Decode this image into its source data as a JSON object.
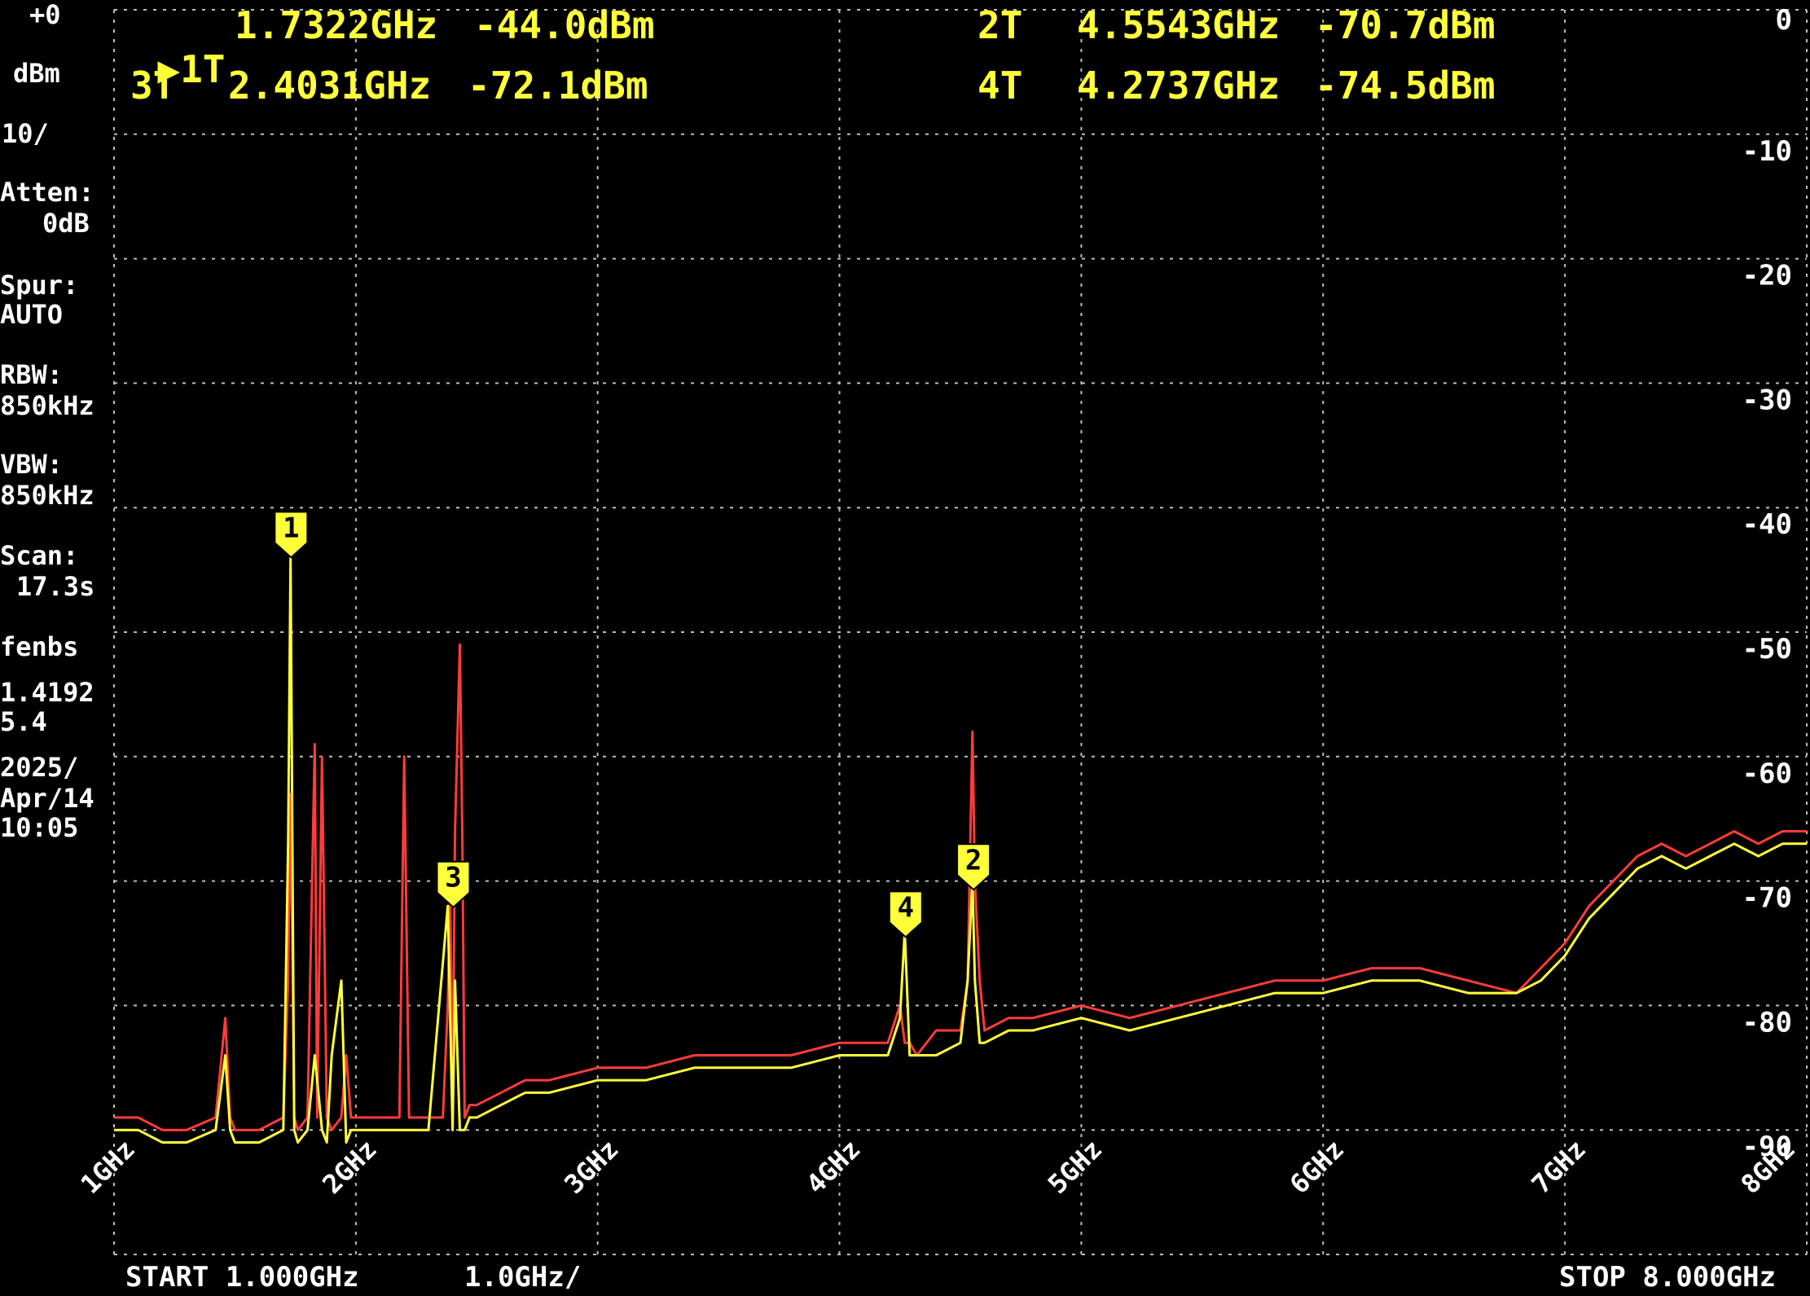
{
  "header": {
    "ref_level": "+0",
    "ref_unit": "dBm",
    "scale": "10/",
    "markers": [
      {
        "label": "1T",
        "freq": "1.7322GHz",
        "level": "-44.0dBm",
        "active": true
      },
      {
        "label": "2T",
        "freq": "4.5543GHz",
        "level": "-70.7dBm",
        "active": false
      },
      {
        "label": "3T",
        "freq": "2.4031GHz",
        "level": "-72.1dBm",
        "active": false
      },
      {
        "label": "4T",
        "freq": "4.2737GHz",
        "level": "-74.5dBm",
        "active": false
      }
    ]
  },
  "sidebar": {
    "atten_label": "Atten:",
    "atten_value": "0dB",
    "spur_label": "Spur:",
    "spur_value": "AUTO",
    "rbw_label": "RBW:",
    "rbw_value": "850kHz",
    "vbw_label": "VBW:",
    "vbw_value": "850kHz",
    "scan_label": "Scan:",
    "scan_value": "17.3s",
    "mode": "fenbs",
    "val1": "1.4192",
    "val2": "5.4",
    "date_year": "2025/",
    "date_day": "Apr/14",
    "time": "10:05"
  },
  "footer": {
    "start": "START 1.000GHz",
    "span_per_div": "1.0GHz/",
    "stop": "STOP 8.000GHz"
  },
  "colors": {
    "trace_max": "#ff3b3b",
    "trace_live": "#ffff3a",
    "grid": "#bdbdbd",
    "marker_fill": "#ffff3a"
  },
  "chart_data": {
    "type": "line",
    "xlim": [
      1,
      8
    ],
    "ylim": [
      -100,
      0
    ],
    "grid": true,
    "y_ticks": [
      0,
      -10,
      -20,
      -30,
      -40,
      -50,
      -60,
      -70,
      -80,
      -90
    ],
    "y_tick_labels": [
      "0",
      "-10",
      "-20",
      "-30",
      "-40",
      "-50",
      "-60",
      "-70",
      "-80",
      "-90"
    ],
    "x_ticks": [
      1,
      2,
      3,
      4,
      5,
      6,
      7,
      8
    ],
    "x_tick_labels": [
      "1GHz",
      "2GHz",
      "3GHz",
      "4GHz",
      "5GHz",
      "6GHz",
      "7GHz",
      "8GHz"
    ],
    "markers": [
      {
        "id": "1",
        "x": 1.7322,
        "y": -44.0
      },
      {
        "id": "2",
        "x": 4.5543,
        "y": -70.7
      },
      {
        "id": "3",
        "x": 2.4031,
        "y": -72.1
      },
      {
        "id": "4",
        "x": 4.2737,
        "y": -74.5
      }
    ],
    "series": [
      {
        "x": [
          1.0,
          1.1,
          1.2,
          1.3,
          1.42,
          1.46,
          1.48,
          1.5,
          1.6,
          1.7,
          1.72,
          1.73,
          1.745,
          1.76,
          1.8,
          1.83,
          1.84,
          1.86,
          1.88,
          1.9,
          1.94,
          1.96,
          1.98,
          2.0,
          2.1,
          2.18,
          2.2,
          2.22,
          2.3,
          2.36,
          2.38,
          2.39,
          2.4,
          2.41,
          2.43,
          2.44,
          2.45,
          2.47,
          2.5,
          2.6,
          2.7,
          2.8,
          3.0,
          3.2,
          3.4,
          3.6,
          3.8,
          4.0,
          4.2,
          4.25,
          4.27,
          4.29,
          4.32,
          4.4,
          4.5,
          4.53,
          4.55,
          4.56,
          4.58,
          4.6,
          4.7,
          4.8,
          5.0,
          5.2,
          5.4,
          5.6,
          5.8,
          6.0,
          6.2,
          6.4,
          6.6,
          6.8,
          6.9,
          7.0,
          7.1,
          7.2,
          7.3,
          7.4,
          7.5,
          7.6,
          7.7,
          7.8,
          7.9,
          8.0
        ],
        "values": [
          -89,
          -89,
          -90,
          -90,
          -89,
          -81,
          -89,
          -90,
          -90,
          -89,
          -78,
          -63,
          -89,
          -90,
          -89,
          -59,
          -89,
          -60,
          -89,
          -90,
          -89,
          -84,
          -89,
          -89,
          -89,
          -89,
          -60,
          -89,
          -89,
          -89,
          -80,
          -71,
          -89,
          -66,
          -51,
          -66,
          -89,
          -88,
          -88,
          -87,
          -86,
          -86,
          -85,
          -85,
          -84,
          -84,
          -84,
          -83,
          -83,
          -80,
          -83,
          -83,
          -84,
          -82,
          -82,
          -78,
          -58,
          -70,
          -78,
          -82,
          -81,
          -81,
          -80,
          -81,
          -80,
          -79,
          -78,
          -78,
          -77,
          -77,
          -78,
          -79,
          -77,
          -75,
          -72,
          -70,
          -68,
          -67,
          -68,
          -67,
          -66,
          -67,
          -66,
          -66
        ]
      },
      {
        "x": [
          1.0,
          1.1,
          1.2,
          1.3,
          1.42,
          1.46,
          1.48,
          1.5,
          1.6,
          1.7,
          1.72,
          1.73,
          1.745,
          1.76,
          1.8,
          1.83,
          1.86,
          1.88,
          1.9,
          1.94,
          1.96,
          1.98,
          2.0,
          2.1,
          2.2,
          2.3,
          2.38,
          2.4,
          2.41,
          2.43,
          2.45,
          2.47,
          2.5,
          2.6,
          2.7,
          2.8,
          3.0,
          3.2,
          3.4,
          3.6,
          3.8,
          4.0,
          4.2,
          4.25,
          4.27,
          4.29,
          4.32,
          4.4,
          4.5,
          4.53,
          4.55,
          4.56,
          4.58,
          4.6,
          4.7,
          4.8,
          5.0,
          5.2,
          5.4,
          5.6,
          5.8,
          6.0,
          6.2,
          6.4,
          6.6,
          6.8,
          6.9,
          7.0,
          7.1,
          7.2,
          7.3,
          7.4,
          7.5,
          7.6,
          7.7,
          7.8,
          7.9,
          8.0
        ],
        "values": [
          -90,
          -90,
          -91,
          -91,
          -90,
          -84,
          -90,
          -91,
          -91,
          -90,
          -67,
          -44,
          -90,
          -91,
          -90,
          -84,
          -90,
          -91,
          -84,
          -78,
          -91,
          -90,
          -90,
          -90,
          -90,
          -90,
          -72,
          -90,
          -78,
          -90,
          -90,
          -89,
          -89,
          -88,
          -87,
          -87,
          -86,
          -86,
          -85,
          -85,
          -85,
          -84,
          -84,
          -81,
          -74,
          -84,
          -84,
          -84,
          -83,
          -78,
          -70,
          -78,
          -83,
          -83,
          -82,
          -82,
          -81,
          -82,
          -81,
          -80,
          -79,
          -79,
          -78,
          -78,
          -79,
          -79,
          -78,
          -76,
          -73,
          -71,
          -69,
          -68,
          -69,
          -68,
          -67,
          -68,
          -67,
          -67
        ]
      }
    ]
  }
}
